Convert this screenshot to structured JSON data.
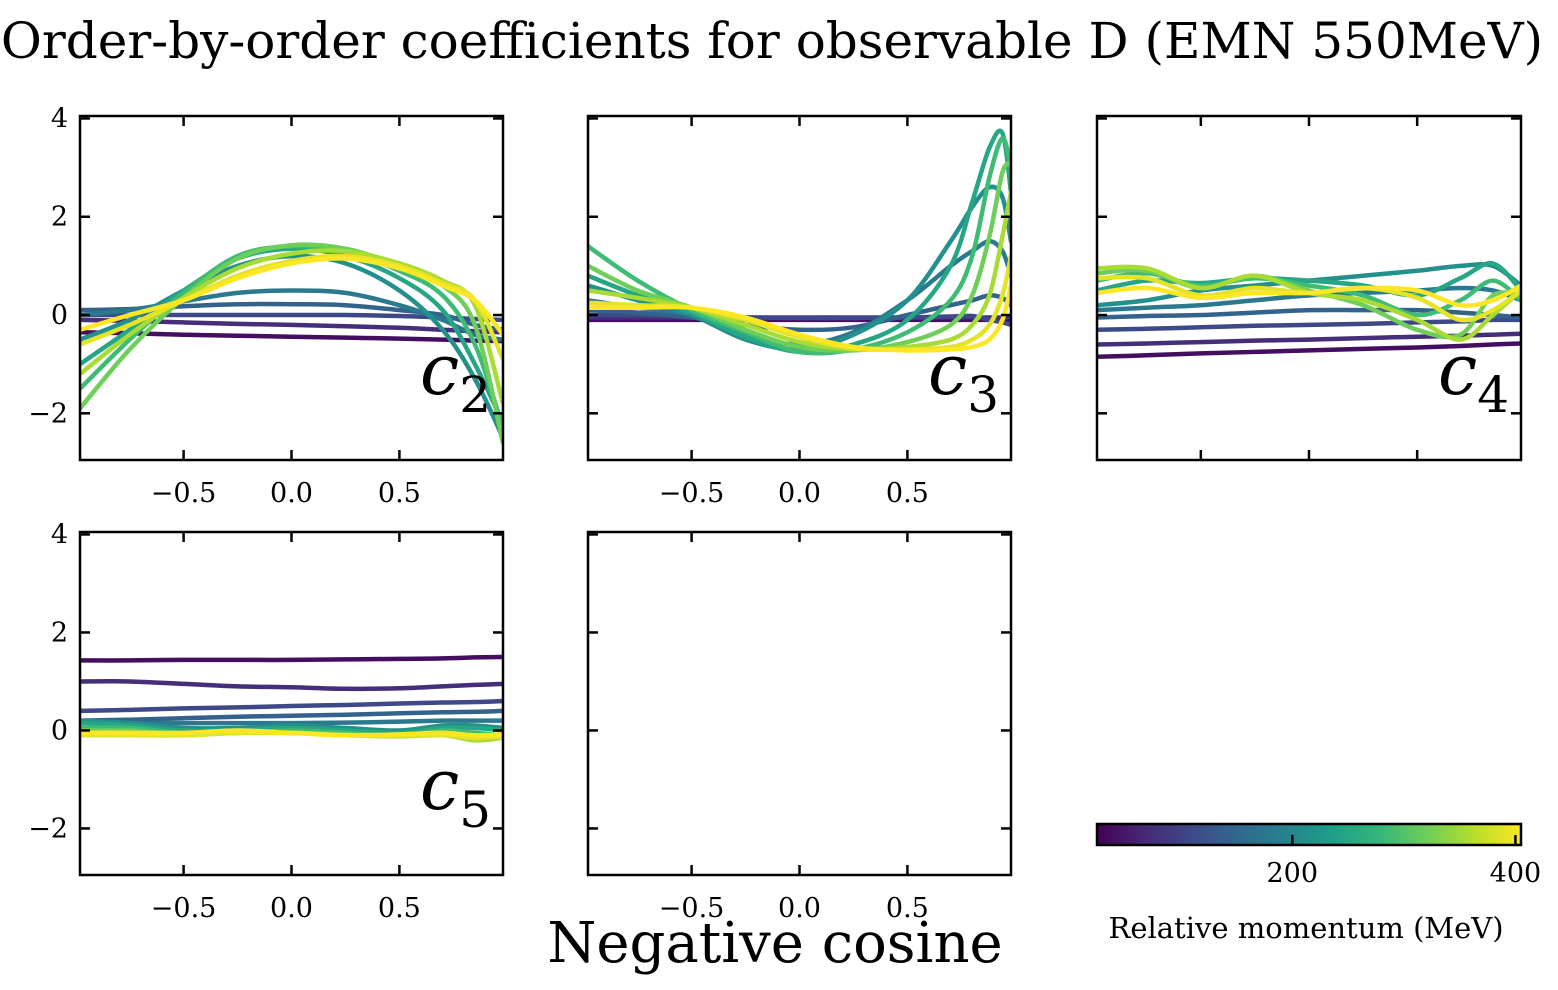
{
  "figure": {
    "title": "Order-by-order coefficients for observable D (EMN 550MeV)",
    "xlabel": "Negative cosine",
    "colorbar": {
      "label": "Relative momentum (MeV)",
      "range": [
        25,
        405
      ],
      "ticks": [
        200,
        400
      ],
      "tick_labels": [
        "200",
        "400"
      ],
      "colormap": [
        "#440154",
        "#482878",
        "#3e4989",
        "#31688e",
        "#26828e",
        "#1f9e89",
        "#35b779",
        "#6ece58",
        "#b5de2b",
        "#fde725"
      ]
    }
  },
  "chart_data": [
    {
      "type": "line",
      "panel": "c2",
      "label_base": "c",
      "label_sub": "2",
      "xlim": [
        -0.98,
        0.98
      ],
      "ylim": [
        -2.95,
        4.05
      ],
      "xticks": [
        -0.5,
        0.0,
        0.5
      ],
      "xtick_labels": [
        "−0.5",
        "0.0",
        "0.5"
      ],
      "yticks": [
        -2,
        0,
        2,
        4
      ],
      "ytick_labels": [
        "−2",
        "0",
        "2",
        "4"
      ],
      "x": [
        -0.98,
        -0.75,
        -0.5,
        -0.25,
        0.0,
        0.25,
        0.5,
        0.7,
        0.85,
        0.98
      ],
      "series": [
        {
          "momentum": 40,
          "values": [
            -0.35,
            -0.37,
            -0.4,
            -0.42,
            -0.44,
            -0.46,
            -0.48,
            -0.5,
            -0.52,
            -0.53
          ]
        },
        {
          "momentum": 75,
          "values": [
            -0.1,
            -0.12,
            -0.15,
            -0.18,
            -0.2,
            -0.23,
            -0.26,
            -0.3,
            -0.33,
            -0.35
          ]
        },
        {
          "momentum": 110,
          "values": [
            0.0,
            0.0,
            0.0,
            0.0,
            0.0,
            0.0,
            -0.02,
            -0.05,
            -0.08,
            -0.1
          ]
        },
        {
          "momentum": 145,
          "values": [
            0.1,
            0.12,
            0.18,
            0.22,
            0.22,
            0.2,
            0.1,
            0.0,
            -0.2,
            -0.3
          ]
        },
        {
          "momentum": 180,
          "values": [
            0.0,
            0.1,
            0.28,
            0.45,
            0.5,
            0.45,
            0.2,
            -0.1,
            -0.4,
            -0.5
          ]
        },
        {
          "momentum": 215,
          "values": [
            -0.5,
            -0.1,
            0.5,
            1.0,
            1.2,
            1.05,
            0.5,
            -0.3,
            -1.3,
            -2.5
          ]
        },
        {
          "momentum": 250,
          "values": [
            -1.0,
            -0.3,
            0.5,
            1.15,
            1.35,
            1.2,
            0.75,
            0.1,
            -1.0,
            -2.2
          ]
        },
        {
          "momentum": 285,
          "values": [
            -1.5,
            -0.5,
            0.45,
            1.2,
            1.4,
            1.3,
            0.9,
            0.4,
            -0.6,
            -2.3
          ]
        },
        {
          "momentum": 320,
          "values": [
            -1.9,
            -0.7,
            0.35,
            1.15,
            1.42,
            1.35,
            1.0,
            0.6,
            -0.2,
            -2.6
          ]
        },
        {
          "momentum": 355,
          "values": [
            -1.2,
            -0.4,
            0.35,
            0.95,
            1.25,
            1.3,
            1.05,
            0.7,
            0.2,
            -1.8
          ]
        },
        {
          "momentum": 390,
          "values": [
            -0.6,
            -0.2,
            0.3,
            0.8,
            1.1,
            1.2,
            1.0,
            0.65,
            0.3,
            -0.9
          ]
        },
        {
          "momentum": 405,
          "values": [
            -0.3,
            0.0,
            0.3,
            0.75,
            1.05,
            1.15,
            0.95,
            0.6,
            0.3,
            -0.4
          ]
        }
      ]
    },
    {
      "type": "line",
      "panel": "c3",
      "label_base": "c",
      "label_sub": "3",
      "xlim": [
        -0.98,
        0.98
      ],
      "ylim": [
        -2.95,
        4.05
      ],
      "xticks": [
        -0.5,
        0.0,
        0.5
      ],
      "xtick_labels": [
        "−0.5",
        "0.0",
        "0.5"
      ],
      "yticks": [
        -2,
        0,
        2,
        4
      ],
      "ytick_labels": [],
      "x": [
        -0.98,
        -0.75,
        -0.5,
        -0.25,
        0.0,
        0.25,
        0.5,
        0.7,
        0.8,
        0.88,
        0.94,
        0.98
      ],
      "series": [
        {
          "momentum": 40,
          "values": [
            -0.1,
            -0.1,
            -0.1,
            -0.1,
            -0.1,
            -0.1,
            -0.1,
            -0.1,
            -0.1,
            -0.1,
            -0.1,
            -0.1
          ]
        },
        {
          "momentum": 75,
          "values": [
            -0.05,
            -0.05,
            -0.05,
            -0.05,
            -0.05,
            -0.05,
            -0.05,
            -0.05,
            -0.05,
            -0.05,
            -0.05,
            -0.05
          ]
        },
        {
          "momentum": 110,
          "values": [
            0.0,
            0.0,
            -0.02,
            -0.05,
            -0.06,
            -0.06,
            -0.05,
            -0.03,
            -0.02,
            -0.1,
            -0.15,
            -0.2
          ]
        },
        {
          "momentum": 145,
          "values": [
            0.1,
            0.05,
            -0.05,
            -0.2,
            -0.3,
            -0.25,
            0.0,
            0.2,
            0.3,
            0.4,
            0.35,
            0.2
          ]
        },
        {
          "momentum": 180,
          "values": [
            0.3,
            0.15,
            0.0,
            -0.4,
            -0.6,
            -0.35,
            0.3,
            1.0,
            1.3,
            1.5,
            1.3,
            0.8
          ]
        },
        {
          "momentum": 215,
          "values": [
            0.6,
            0.3,
            0.0,
            -0.5,
            -0.7,
            -0.4,
            0.3,
            1.5,
            2.2,
            2.6,
            2.4,
            1.5
          ]
        },
        {
          "momentum": 250,
          "values": [
            0.8,
            0.4,
            0.05,
            -0.45,
            -0.75,
            -0.6,
            -0.1,
            1.0,
            2.3,
            3.4,
            3.7,
            2.5
          ]
        },
        {
          "momentum": 285,
          "values": [
            1.4,
            0.7,
            0.1,
            -0.35,
            -0.75,
            -0.7,
            -0.35,
            0.3,
            1.2,
            2.8,
            3.6,
            3.0
          ]
        },
        {
          "momentum": 320,
          "values": [
            1.0,
            0.5,
            0.15,
            -0.3,
            -0.65,
            -0.72,
            -0.55,
            -0.2,
            0.4,
            1.6,
            2.9,
            3.1
          ]
        },
        {
          "momentum": 355,
          "values": [
            0.5,
            0.35,
            0.15,
            -0.2,
            -0.55,
            -0.7,
            -0.65,
            -0.5,
            -0.2,
            0.4,
            1.6,
            2.5
          ]
        },
        {
          "momentum": 390,
          "values": [
            0.25,
            0.2,
            0.15,
            -0.1,
            -0.45,
            -0.68,
            -0.7,
            -0.65,
            -0.5,
            -0.2,
            0.4,
            1.2
          ]
        },
        {
          "momentum": 405,
          "values": [
            0.15,
            0.15,
            0.15,
            -0.05,
            -0.4,
            -0.65,
            -0.72,
            -0.7,
            -0.65,
            -0.5,
            -0.1,
            0.6
          ]
        }
      ]
    },
    {
      "type": "line",
      "panel": "c4",
      "label_base": "c",
      "label_sub": "4",
      "xlim": [
        -0.98,
        0.98
      ],
      "ylim": [
        -2.95,
        4.05
      ],
      "xticks": [
        -0.5,
        0.0,
        0.5
      ],
      "xtick_labels": [],
      "yticks": [
        -2,
        0,
        2,
        4
      ],
      "ytick_labels": [],
      "x": [
        -0.98,
        -0.75,
        -0.5,
        -0.25,
        0.0,
        0.25,
        0.5,
        0.7,
        0.85,
        0.98
      ],
      "series": [
        {
          "momentum": 40,
          "values": [
            -0.85,
            -0.82,
            -0.78,
            -0.75,
            -0.72,
            -0.69,
            -0.66,
            -0.63,
            -0.6,
            -0.58
          ]
        },
        {
          "momentum": 75,
          "values": [
            -0.6,
            -0.58,
            -0.55,
            -0.52,
            -0.5,
            -0.47,
            -0.44,
            -0.42,
            -0.4,
            -0.38
          ]
        },
        {
          "momentum": 110,
          "values": [
            -0.3,
            -0.28,
            -0.25,
            -0.22,
            -0.2,
            -0.18,
            -0.15,
            -0.13,
            -0.1,
            -0.1
          ]
        },
        {
          "momentum": 145,
          "values": [
            -0.05,
            -0.02,
            0.0,
            0.05,
            0.1,
            0.1,
            0.1,
            0.05,
            0.0,
            -0.05
          ]
        },
        {
          "momentum": 180,
          "values": [
            0.1,
            0.15,
            0.2,
            0.3,
            0.4,
            0.45,
            0.5,
            0.55,
            0.5,
            0.3
          ]
        },
        {
          "momentum": 215,
          "values": [
            0.2,
            0.3,
            0.5,
            0.6,
            0.7,
            0.8,
            0.9,
            1.0,
            1.0,
            0.6
          ]
        },
        {
          "momentum": 250,
          "values": [
            0.5,
            0.7,
            0.65,
            0.75,
            0.7,
            0.6,
            0.4,
            0.75,
            1.05,
            0.5
          ]
        },
        {
          "momentum": 285,
          "values": [
            0.7,
            0.85,
            0.6,
            0.75,
            0.6,
            0.4,
            0.0,
            0.3,
            0.7,
            0.3
          ]
        },
        {
          "momentum": 320,
          "values": [
            0.85,
            0.9,
            0.55,
            0.8,
            0.5,
            0.2,
            -0.3,
            -0.4,
            0.4,
            0.4
          ]
        },
        {
          "momentum": 355,
          "values": [
            0.95,
            0.95,
            0.55,
            0.8,
            0.45,
            0.3,
            -0.1,
            -0.5,
            0.0,
            0.5
          ]
        },
        {
          "momentum": 390,
          "values": [
            0.75,
            0.75,
            0.4,
            0.55,
            0.45,
            0.55,
            0.35,
            -0.1,
            0.1,
            0.5
          ]
        },
        {
          "momentum": 405,
          "values": [
            0.45,
            0.55,
            0.35,
            0.45,
            0.45,
            0.55,
            0.5,
            0.2,
            0.3,
            0.6
          ]
        }
      ]
    },
    {
      "type": "line",
      "panel": "c5",
      "label_base": "c",
      "label_sub": "5",
      "xlim": [
        -0.98,
        0.98
      ],
      "ylim": [
        -2.95,
        4.05
      ],
      "xticks": [
        -0.5,
        0.0,
        0.5
      ],
      "xtick_labels": [
        "−0.5",
        "0.0",
        "0.5"
      ],
      "yticks": [
        -2,
        0,
        2,
        4
      ],
      "ytick_labels": [
        "−2",
        "0",
        "2",
        "4"
      ],
      "x": [
        -0.98,
        -0.75,
        -0.5,
        -0.25,
        0.0,
        0.25,
        0.5,
        0.7,
        0.85,
        0.98
      ],
      "series": [
        {
          "momentum": 40,
          "values": [
            1.43,
            1.43,
            1.44,
            1.44,
            1.44,
            1.45,
            1.46,
            1.47,
            1.49,
            1.5
          ]
        },
        {
          "momentum": 75,
          "values": [
            1.0,
            1.0,
            0.95,
            0.9,
            0.88,
            0.85,
            0.86,
            0.9,
            0.93,
            0.95
          ]
        },
        {
          "momentum": 110,
          "values": [
            0.4,
            0.42,
            0.45,
            0.47,
            0.5,
            0.52,
            0.55,
            0.57,
            0.58,
            0.6
          ]
        },
        {
          "momentum": 145,
          "values": [
            0.2,
            0.22,
            0.25,
            0.28,
            0.3,
            0.32,
            0.35,
            0.37,
            0.38,
            0.4
          ]
        },
        {
          "momentum": 180,
          "values": [
            0.15,
            0.15,
            0.15,
            0.15,
            0.15,
            0.16,
            0.18,
            0.2,
            0.2,
            0.2
          ]
        },
        {
          "momentum": 215,
          "values": [
            0.2,
            0.15,
            0.05,
            0.05,
            0.1,
            0.05,
            0.0,
            0.1,
            0.1,
            0.05
          ]
        },
        {
          "momentum": 250,
          "values": [
            0.15,
            0.1,
            0.0,
            0.0,
            0.05,
            0.0,
            -0.05,
            0.05,
            0.05,
            0.0
          ]
        },
        {
          "momentum": 285,
          "values": [
            0.05,
            0.05,
            -0.05,
            -0.05,
            0.0,
            -0.05,
            -0.1,
            0.0,
            -0.05,
            -0.1
          ]
        },
        {
          "momentum": 320,
          "values": [
            0.0,
            0.0,
            -0.08,
            -0.05,
            -0.05,
            -0.08,
            -0.1,
            -0.05,
            -0.15,
            -0.1
          ]
        },
        {
          "momentum": 355,
          "values": [
            -0.05,
            -0.05,
            -0.1,
            -0.05,
            -0.05,
            -0.1,
            -0.12,
            -0.1,
            -0.2,
            -0.15
          ]
        },
        {
          "momentum": 390,
          "values": [
            -0.1,
            -0.1,
            -0.1,
            -0.05,
            -0.05,
            -0.1,
            -0.1,
            -0.1,
            -0.15,
            -0.12
          ]
        },
        {
          "momentum": 405,
          "values": [
            -0.05,
            -0.05,
            -0.05,
            0.0,
            -0.05,
            -0.1,
            -0.08,
            -0.05,
            -0.1,
            -0.08
          ]
        }
      ]
    },
    {
      "type": "line",
      "panel": "empty",
      "label_base": "",
      "label_sub": "",
      "xlim": [
        -0.98,
        0.98
      ],
      "ylim": [
        -2.95,
        4.05
      ],
      "xticks": [
        -0.5,
        0.0,
        0.5
      ],
      "xtick_labels": [
        "−0.5",
        "0.0",
        "0.5"
      ],
      "yticks": [
        -2,
        0,
        2,
        4
      ],
      "ytick_labels": [],
      "x": [],
      "series": []
    }
  ]
}
